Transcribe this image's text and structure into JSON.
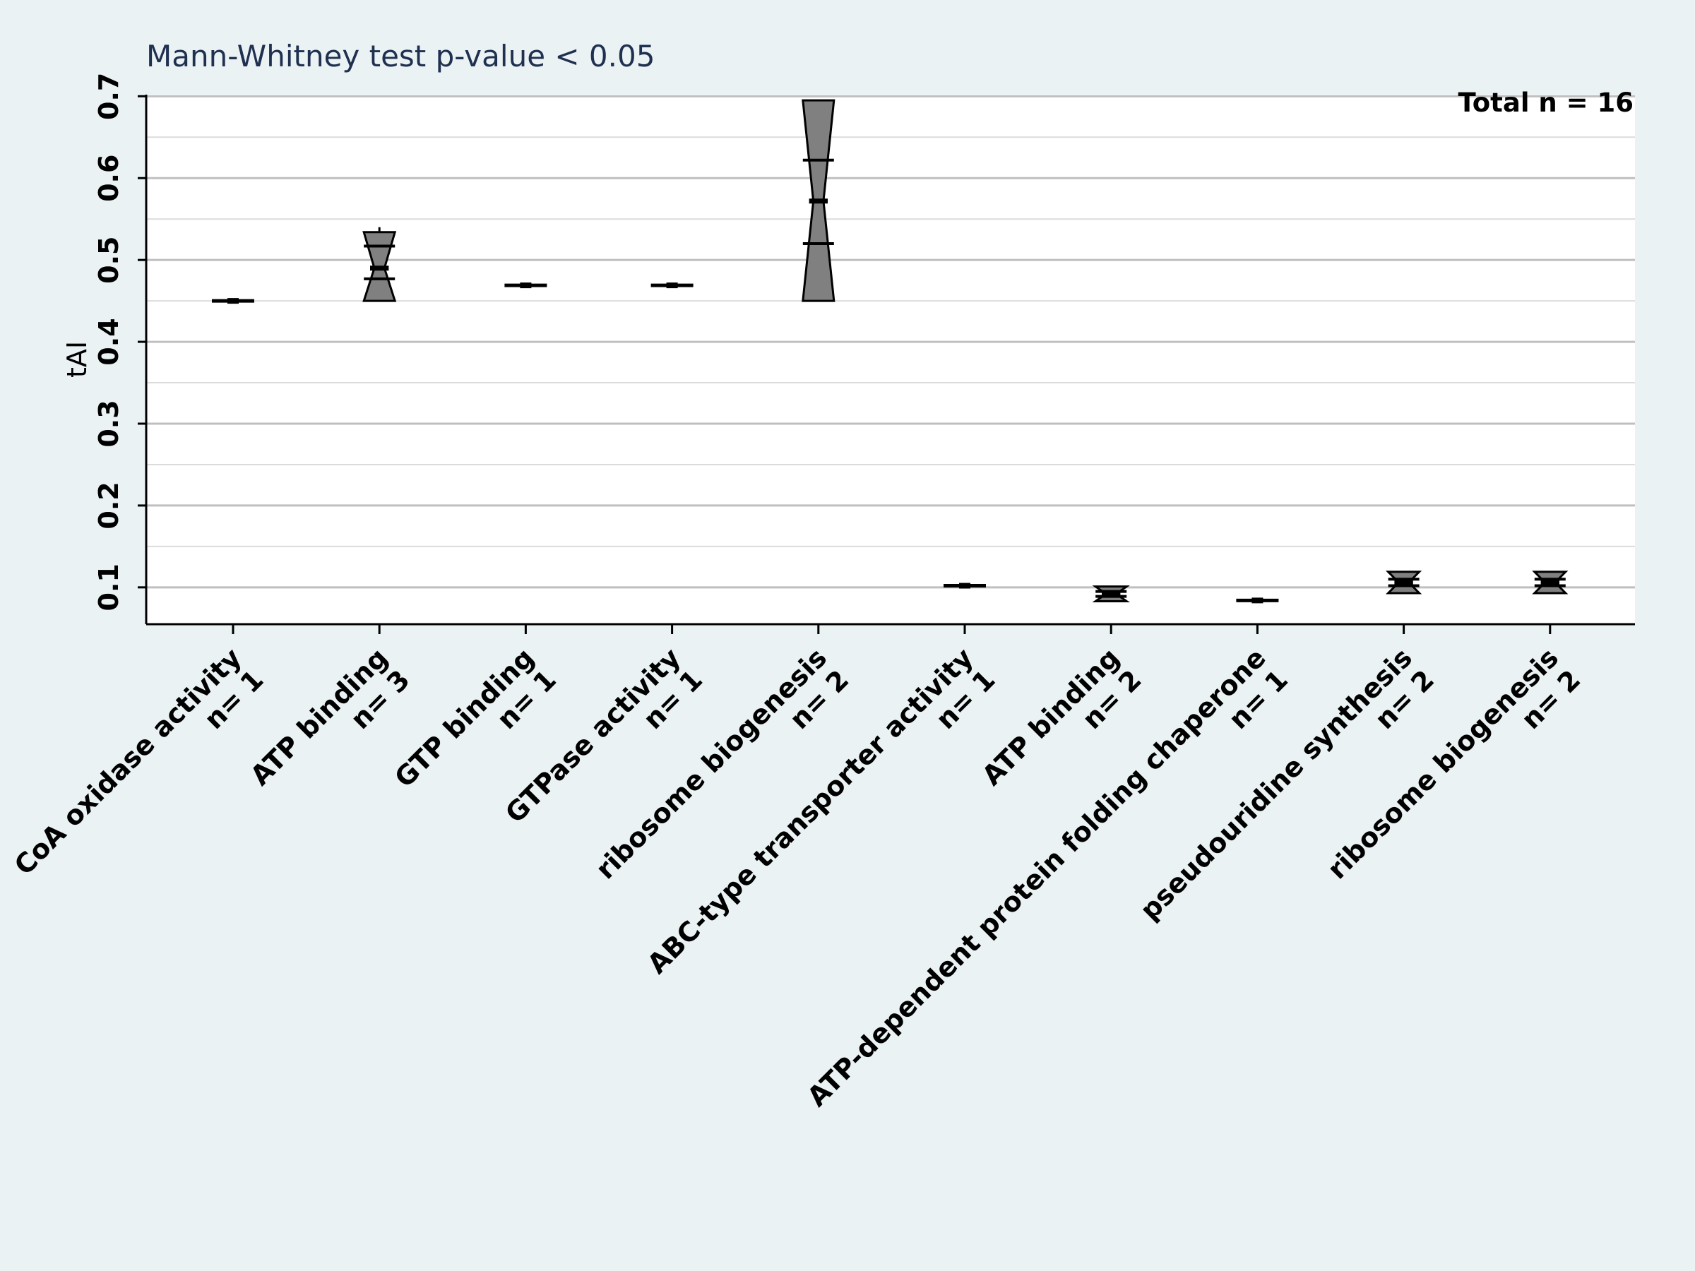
{
  "chart_data": {
    "type": "box",
    "title": "Mann-Whitney test  p-value < 0.05",
    "annotation": "Total n = 16",
    "ylabel": "tAI",
    "xlabel": "",
    "ylim": [
      0.055,
      0.702
    ],
    "yticks": [
      "0.1",
      "0.2",
      "0.3",
      "0.4",
      "0.5",
      "0.6",
      "0.7"
    ],
    "ytick_values": [
      0.1,
      0.2,
      0.3,
      0.4,
      0.5,
      0.6,
      0.7
    ],
    "minor_gridlines": [
      0.15,
      0.25,
      0.35,
      0.45,
      0.55,
      0.65
    ],
    "grid": true,
    "box_color": "#808080",
    "categories": [
      {
        "label": "CoA oxidase activity",
        "n": "n= 1",
        "min": 0.45,
        "q1": 0.45,
        "median": 0.45,
        "q3": 0.45,
        "max": 0.45,
        "notch_lo": 0.45,
        "notch_hi": 0.45
      },
      {
        "label": "ATP binding",
        "n": "n= 3",
        "min": 0.47,
        "q1": 0.477,
        "median": 0.49,
        "q3": 0.517,
        "max": 0.54,
        "notch_lo": 0.45,
        "notch_hi": 0.534
      },
      {
        "label": "GTP binding",
        "n": "n= 1",
        "min": 0.469,
        "q1": 0.469,
        "median": 0.469,
        "q3": 0.469,
        "max": 0.469,
        "notch_lo": 0.469,
        "notch_hi": 0.469
      },
      {
        "label": "GTPase activity",
        "n": "n= 1",
        "min": 0.469,
        "q1": 0.469,
        "median": 0.469,
        "q3": 0.469,
        "max": 0.469,
        "notch_lo": 0.469,
        "notch_hi": 0.469
      },
      {
        "label": "ribosome biogenesis",
        "n": "n= 2",
        "min": 0.47,
        "q1": 0.52,
        "median": 0.572,
        "q3": 0.622,
        "max": 0.673,
        "notch_lo": 0.45,
        "notch_hi": 0.695
      },
      {
        "label": "ABC-type transporter activity",
        "n": "n= 1",
        "min": 0.102,
        "q1": 0.102,
        "median": 0.102,
        "q3": 0.102,
        "max": 0.102,
        "notch_lo": 0.102,
        "notch_hi": 0.102
      },
      {
        "label": "ATP binding",
        "n": "n= 2",
        "min": 0.089,
        "q1": 0.089,
        "median": 0.092,
        "q3": 0.095,
        "max": 0.095,
        "notch_lo": 0.083,
        "notch_hi": 0.101
      },
      {
        "label": "ATP-dependent protein folding chaperone",
        "n": "n= 1",
        "min": 0.084,
        "q1": 0.084,
        "median": 0.084,
        "q3": 0.084,
        "max": 0.084,
        "notch_lo": 0.084,
        "notch_hi": 0.084
      },
      {
        "label": "pseudouridine synthesis",
        "n": "n= 2",
        "min": 0.102,
        "q1": 0.102,
        "median": 0.106,
        "q3": 0.11,
        "max": 0.11,
        "notch_lo": 0.093,
        "notch_hi": 0.119
      },
      {
        "label": "ribosome biogenesis",
        "n": "n= 2",
        "min": 0.102,
        "q1": 0.102,
        "median": 0.106,
        "q3": 0.11,
        "max": 0.11,
        "notch_lo": 0.093,
        "notch_hi": 0.119
      }
    ]
  }
}
